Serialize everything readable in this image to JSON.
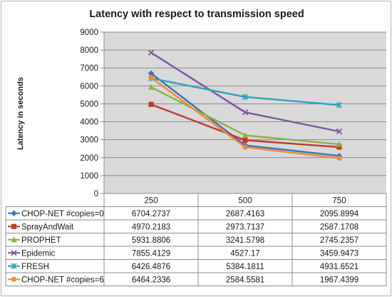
{
  "chart_data": {
    "type": "line",
    "title": "Latency with respect to transmission speed",
    "xlabel": "",
    "ylabel": "Latency in seconds",
    "categories": [
      "250",
      "500",
      "750"
    ],
    "ylim": [
      0,
      9000
    ],
    "yticks": [
      0,
      1000,
      2000,
      3000,
      4000,
      5000,
      6000,
      7000,
      8000,
      9000
    ],
    "grid": true,
    "legend": "data-table-left",
    "series": [
      {
        "name": "CHOP-NET #copies=0",
        "values": [
          6704.2737,
          2687.4163,
          2095.8994
        ],
        "labels": [
          "6704.2737",
          "2687.4163",
          "2095.8994"
        ],
        "color": "#3b73b9",
        "marker": "diamond"
      },
      {
        "name": "SprayAndWait",
        "values": [
          4970.2183,
          2973.7137,
          2587.1708
        ],
        "labels": [
          "4970.2183",
          "2973.7137",
          "2587.1708"
        ],
        "color": "#c0392b",
        "marker": "square"
      },
      {
        "name": "PROPHET",
        "values": [
          5931.8806,
          3241.5798,
          2745.2357
        ],
        "labels": [
          "5931.8806",
          "3241.5798",
          "2745.2357"
        ],
        "color": "#8ab33f",
        "marker": "triangle"
      },
      {
        "name": "Epidemic",
        "values": [
          7855.4129,
          4527.17,
          3459.9473
        ],
        "labels": [
          "7855.4129",
          "4527.17",
          "3459.9473"
        ],
        "color": "#7b57a0",
        "marker": "x"
      },
      {
        "name": "FRESH",
        "values": [
          6426.4876,
          5384.1811,
          4931.6521
        ],
        "labels": [
          "6426.4876",
          "5384.1811",
          "4931.6521"
        ],
        "color": "#2aa3bd",
        "marker": "star"
      },
      {
        "name": "CHOP-NET #copies=6",
        "values": [
          6464.2336,
          2584.5581,
          1967.4399
        ],
        "labels": [
          "6464.2336",
          "2584.5581",
          "1967.4399"
        ],
        "color": "#f08b32",
        "marker": "circle"
      }
    ]
  }
}
